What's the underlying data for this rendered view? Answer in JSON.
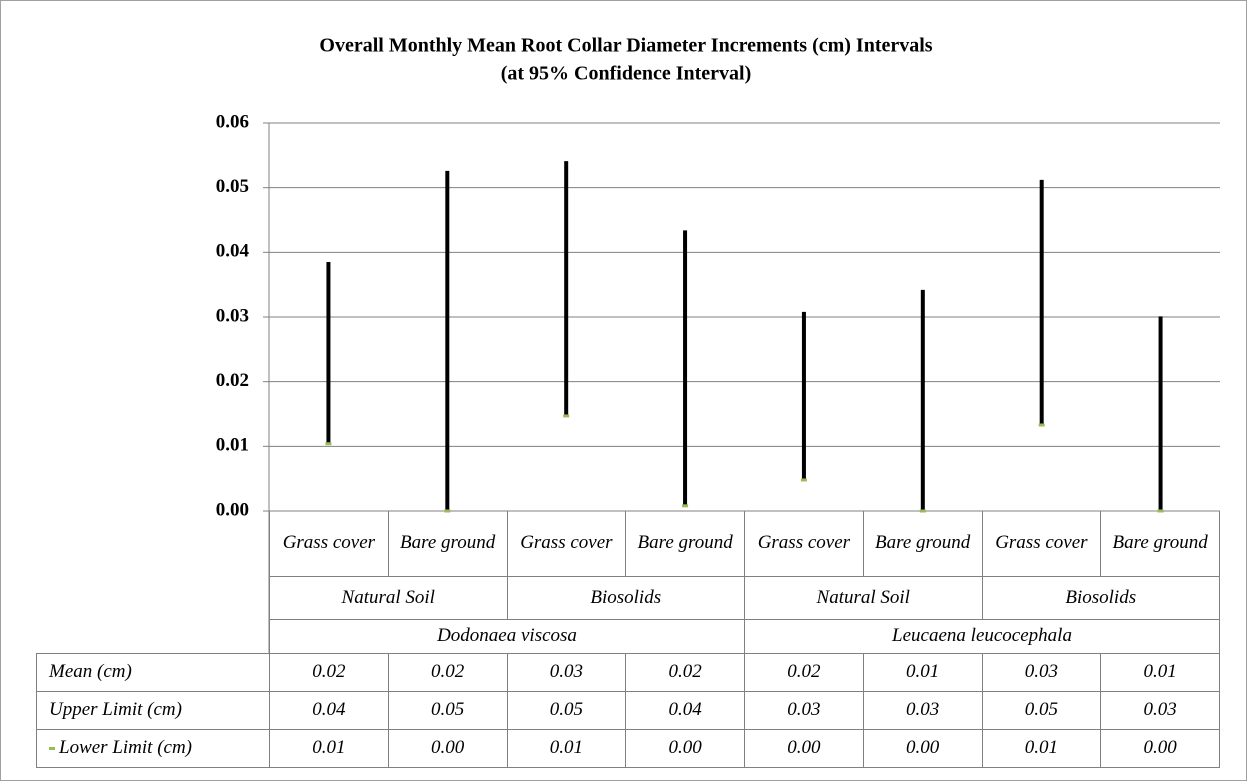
{
  "chart_data": {
    "type": "range",
    "title": "Overall Monthly Mean Root Collar Diameter Increments (cm) Intervals",
    "subtitle": "(at 95% Confidence Interval)",
    "categories": [
      "Grass cover",
      "Bare ground",
      "Grass cover",
      "Bare ground",
      "Grass cover",
      "Bare ground",
      "Grass cover",
      "Bare ground"
    ],
    "groups": [
      "Natural Soil",
      "Biosolids",
      "Natural Soil",
      "Biosolids"
    ],
    "species": [
      "Dodonaea viscosa",
      "Leucaena leucocephala"
    ],
    "ylim": [
      0,
      0.06
    ],
    "yticks": [
      {
        "value": 0,
        "label": "0.00"
      },
      0.01,
      0.02,
      0.03,
      0.04,
      0.05,
      0.06
    ],
    "grid": true,
    "series": [
      {
        "name": "Mean (cm)",
        "value_labels": [
          "0.02",
          "0.02",
          "0.03",
          "0.02",
          "0.02",
          "0.01",
          "0.03",
          "0.01"
        ]
      },
      {
        "name": "Upper Limit (cm)",
        "color": "#000000",
        "values": [
          0.0385,
          0.0526,
          0.0541,
          0.0434,
          0.0308,
          0.0342,
          0.0512,
          0.0301
        ],
        "value_labels": [
          "0.04",
          "0.05",
          "0.05",
          "0.04",
          "0.03",
          "0.03",
          "0.05",
          "0.03"
        ]
      },
      {
        "name": "Lower Limit (cm)",
        "color": "#9bbb59",
        "values": [
          0.0104,
          0,
          0.0147,
          0.0008,
          0.0048,
          0,
          0.0133,
          0
        ],
        "value_labels": [
          "0.01",
          "0.00",
          "0.01",
          "0.00",
          "0.00",
          "0.00",
          "0.01",
          "0.00"
        ]
      }
    ]
  }
}
